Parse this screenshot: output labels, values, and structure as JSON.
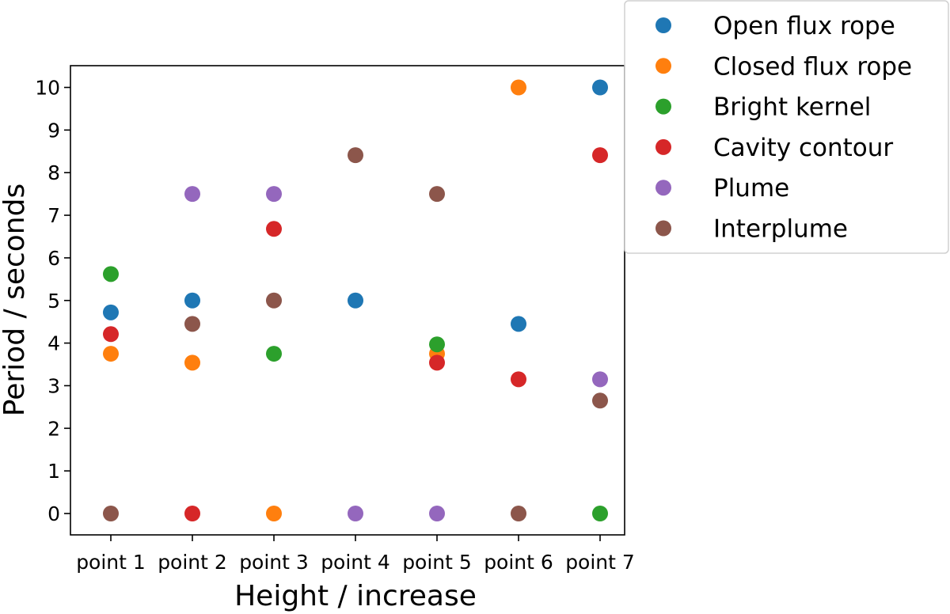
{
  "chart_data": {
    "type": "scatter",
    "xlabel": "Height / increase",
    "ylabel": "Period / seconds",
    "categories": [
      "point 1",
      "point 2",
      "point 3",
      "point 4",
      "point 5",
      "point 6",
      "point 7"
    ],
    "yticks": [
      0,
      1,
      2,
      3,
      4,
      5,
      6,
      7,
      8,
      9,
      10
    ],
    "ylim": [
      -0.5,
      10.6
    ],
    "grid": false,
    "legend_position": "outside-upper-right",
    "series": [
      {
        "name": "Open flux rope",
        "color": "#1f77b4",
        "values": [
          4.72,
          5.0,
          null,
          5.0,
          null,
          4.45,
          10.0
        ]
      },
      {
        "name": "Closed flux rope",
        "color": "#ff7f0e",
        "values": [
          3.75,
          3.54,
          0.0,
          null,
          3.75,
          10.0,
          null
        ]
      },
      {
        "name": "Bright kernel",
        "color": "#2ca02c",
        "values": [
          5.62,
          null,
          3.75,
          null,
          3.97,
          null,
          0.0
        ]
      },
      {
        "name": "Cavity contour",
        "color": "#d62728",
        "values": [
          4.21,
          0.0,
          6.68,
          null,
          3.54,
          3.15,
          8.41
        ]
      },
      {
        "name": "Plume",
        "color": "#9467bd",
        "values": [
          null,
          7.5,
          7.5,
          0.0,
          0.0,
          null,
          3.15
        ]
      },
      {
        "name": "Interplume",
        "color": "#8c564b",
        "values": [
          0.0,
          4.45,
          5.0,
          8.41,
          7.5,
          0.0,
          2.65
        ]
      }
    ]
  }
}
